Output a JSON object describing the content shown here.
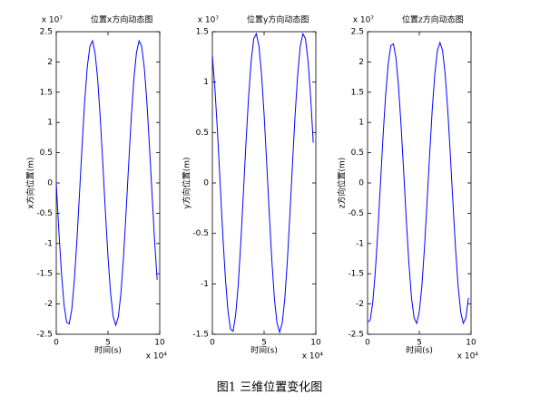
{
  "caption": "图1  三维位置变化图",
  "chart_data": [
    {
      "type": "line",
      "title": "位置x方向动态图",
      "y_multiplier": "x 10⁷",
      "x_multiplier": "x 10⁴",
      "x_label": "时间(s)",
      "y_label": "x方向位置(m)",
      "color": "#0000ff",
      "xlim": [
        0,
        10
      ],
      "xticks": [
        0,
        5,
        10
      ],
      "ylim": [
        -2.5,
        2.5
      ],
      "yticks": [
        -2.5,
        -2,
        -1.5,
        -1,
        -0.5,
        0,
        0.5,
        1,
        1.5,
        2,
        2.5
      ],
      "x": [
        0,
        0.25,
        0.5,
        0.75,
        1,
        1.25,
        1.5,
        1.75,
        2,
        2.25,
        2.5,
        2.75,
        3,
        3.25,
        3.5,
        3.75,
        4,
        4.25,
        4.5,
        4.75,
        5,
        5.25,
        5.5,
        5.75,
        6,
        6.25,
        6.5,
        6.75,
        7,
        7.25,
        7.5,
        7.75,
        8,
        8.25,
        8.5,
        8.75,
        9,
        9.25,
        9.5,
        9.75
      ],
      "values": [
        0,
        -0.79,
        -1.48,
        -2.01,
        -2.3,
        -2.33,
        -2.09,
        -1.6,
        -0.94,
        -0.16,
        0.63,
        1.36,
        1.92,
        2.26,
        2.35,
        2.15,
        1.72,
        1.08,
        0.32,
        -0.48,
        -1.22,
        -1.82,
        -2.21,
        -2.35,
        -2.21,
        -1.82,
        -1.22,
        -0.48,
        0.32,
        1.08,
        1.72,
        2.15,
        2.35,
        2.26,
        1.92,
        1.36,
        0.63,
        -0.16,
        -0.94,
        -1.6
      ]
    },
    {
      "type": "line",
      "title": "位置y方向动态图",
      "y_multiplier": "x 10⁷",
      "x_multiplier": "x 10⁴",
      "x_label": "时间(s)",
      "y_label": "y方向位置(m)",
      "color": "#0000ff",
      "xlim": [
        0,
        10
      ],
      "xticks": [
        0,
        5,
        10
      ],
      "ylim": [
        -1.5,
        1.5
      ],
      "yticks": [
        -1.5,
        -1,
        -0.5,
        0,
        0.5,
        1,
        1.5
      ],
      "x": [
        0,
        0.25,
        0.5,
        0.75,
        1,
        1.25,
        1.5,
        1.75,
        2,
        2.25,
        2.5,
        2.75,
        3,
        3.25,
        3.5,
        3.75,
        4,
        4.25,
        4.5,
        4.75,
        5,
        5.25,
        5.5,
        5.75,
        6,
        6.25,
        6.5,
        6.75,
        7,
        7.25,
        7.5,
        7.75,
        8,
        8.25,
        8.5,
        8.75,
        9,
        9.25,
        9.5,
        9.75
      ],
      "values": [
        1.26,
        0.93,
        0.5,
        0,
        -0.5,
        -0.93,
        -1.26,
        -1.45,
        -1.47,
        -1.31,
        -1.01,
        -0.59,
        -0.1,
        0.4,
        0.85,
        1.21,
        1.43,
        1.48,
        1.36,
        1.08,
        0.68,
        0.2,
        -0.3,
        -0.77,
        -1.15,
        -1.39,
        -1.48,
        -1.39,
        -1.15,
        -0.77,
        -0.3,
        0.2,
        0.68,
        1.08,
        1.36,
        1.48,
        1.43,
        1.21,
        0.85,
        0.4
      ]
    },
    {
      "type": "line",
      "title": "位置z方向动态图",
      "y_multiplier": "x 10⁷",
      "x_multiplier": "x 10⁴",
      "x_label": "时间(s)",
      "y_label": "z方向位置(m)",
      "color": "#0000ff",
      "xlim": [
        0,
        10
      ],
      "xticks": [
        0,
        5,
        10
      ],
      "ylim": [
        -2.5,
        2.5
      ],
      "yticks": [
        -2.5,
        -2,
        -1.5,
        -1,
        -0.5,
        0,
        0.5,
        1,
        1.5,
        2,
        2.5
      ],
      "x": [
        0,
        0.25,
        0.5,
        0.75,
        1,
        1.25,
        1.5,
        1.75,
        2,
        2.25,
        2.5,
        2.75,
        3,
        3.25,
        3.5,
        3.75,
        4,
        4.25,
        4.5,
        4.75,
        5,
        5.25,
        5.5,
        5.75,
        6,
        6.25,
        6.5,
        6.75,
        7,
        7.25,
        7.5,
        7.75,
        8,
        8.25,
        8.5,
        8.75,
        9,
        9.25,
        9.5,
        9.75
      ],
      "values": [
        -2.3,
        -2.27,
        -1.98,
        -1.46,
        -0.78,
        0,
        0.78,
        1.46,
        1.98,
        2.27,
        2.3,
        2.06,
        1.58,
        0.92,
        0.16,
        -0.63,
        -1.34,
        -1.9,
        -2.23,
        -2.32,
        -2.13,
        -1.7,
        -1.07,
        -0.32,
        0.47,
        1.21,
        1.8,
        2.19,
        2.32,
        2.19,
        1.8,
        1.21,
        0.47,
        -0.32,
        -1.07,
        -1.7,
        -2.13,
        -2.32,
        -2.23,
        -1.9
      ]
    }
  ]
}
